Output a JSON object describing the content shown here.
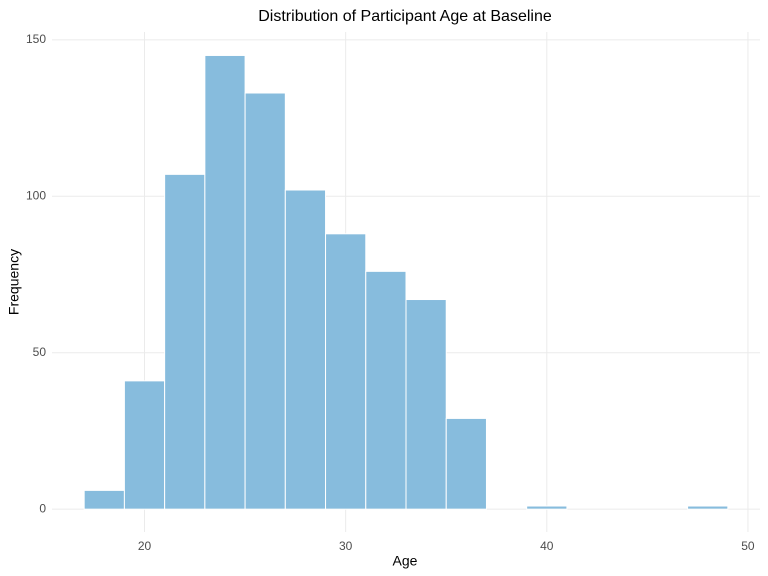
{
  "chart_data": {
    "type": "histogram",
    "title": "Distribution of Participant Age at Baseline",
    "x_label": "Age",
    "y_label": "Frequency",
    "bins": [
      17,
      19,
      21,
      23,
      25,
      27,
      29,
      31,
      33,
      35,
      37,
      39,
      41,
      43,
      45,
      47,
      49
    ],
    "values": [
      6,
      41,
      107,
      145,
      133,
      102,
      88,
      76,
      67,
      29,
      0,
      1,
      0,
      0,
      0,
      1
    ],
    "color": "#87bcdd",
    "xlim": [
      15.4,
      50.6
    ],
    "xticks": [
      20,
      30,
      40,
      50
    ],
    "ylim": [
      -7.3,
      152.5
    ],
    "yticks": [
      0,
      50,
      100,
      150
    ],
    "grid": true
  }
}
